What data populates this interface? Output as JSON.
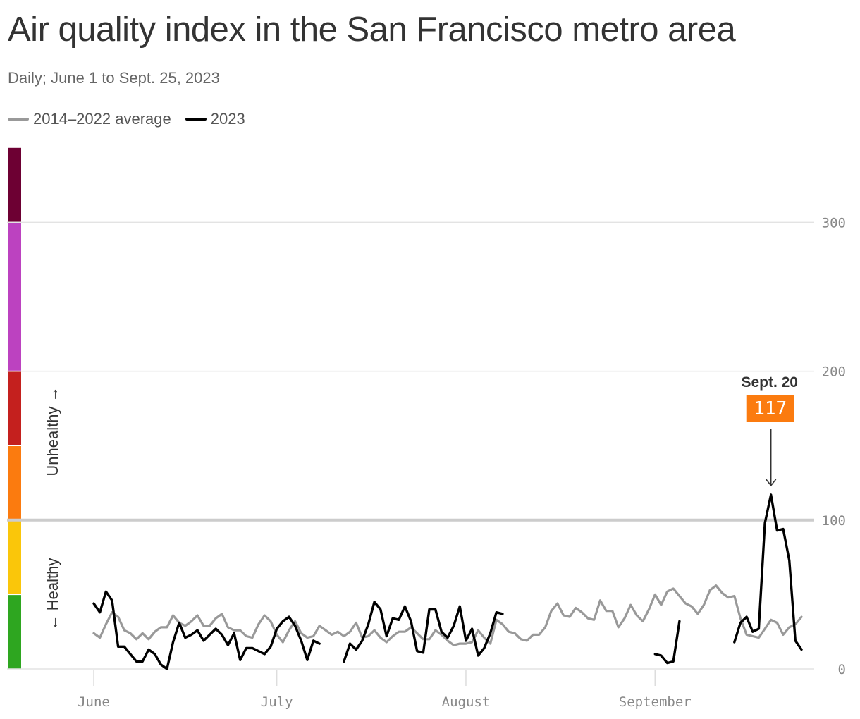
{
  "title": "Air quality index in the San Francisco metro area",
  "subtitle": "Daily; June 1 to Sept. 25, 2023",
  "chart_data": {
    "type": "line",
    "x_start": "2023-06-01",
    "x_end": "2023-09-25",
    "x_ticks": [
      {
        "label": "June",
        "date": "2023-06-01"
      },
      {
        "label": "July",
        "date": "2023-07-01"
      },
      {
        "label": "August",
        "date": "2023-08-01"
      },
      {
        "label": "September",
        "date": "2023-09-01"
      }
    ],
    "ylim": [
      0,
      350
    ],
    "y_ticks": [
      0,
      100,
      200,
      300
    ],
    "grid": true,
    "legend_position": "top-left",
    "series": [
      {
        "name": "2014–2022 average",
        "color": "#999999",
        "values": [
          24,
          21,
          30,
          38,
          35,
          26,
          24,
          20,
          24,
          20,
          25,
          28,
          28,
          36,
          31,
          29,
          32,
          36,
          29,
          29,
          34,
          37,
          28,
          26,
          26,
          22,
          21,
          30,
          36,
          32,
          23,
          18,
          26,
          32,
          24,
          21,
          22,
          29,
          26,
          23,
          25,
          22,
          25,
          31,
          21,
          22,
          26,
          21,
          18,
          22,
          25,
          25,
          28,
          24,
          20,
          20,
          26,
          23,
          19,
          16,
          17,
          17,
          18,
          26,
          21,
          17,
          33,
          30,
          25,
          24,
          20,
          19,
          23,
          23,
          28,
          39,
          44,
          36,
          35,
          41,
          38,
          34,
          33,
          46,
          39,
          39,
          28,
          34,
          43,
          36,
          32,
          40,
          50,
          43,
          52,
          54,
          49,
          44,
          42,
          37,
          43,
          53,
          56,
          51,
          48,
          49,
          34,
          23,
          22,
          21,
          27,
          33,
          31,
          23,
          28,
          30,
          35
        ],
        "start": "2023-06-01"
      },
      {
        "name": "2023",
        "color": "#000000",
        "segments": [
          {
            "start": "2023-06-01",
            "values": [
              44,
              38,
              52,
              46,
              15,
              15,
              10,
              5,
              5,
              13,
              10,
              3,
              0,
              18,
              31,
              21,
              23,
              26,
              19,
              23,
              27,
              23,
              16,
              24,
              6,
              14,
              14,
              12,
              10,
              15,
              27,
              32,
              35,
              29,
              19,
              6,
              19,
              17
            ]
          },
          {
            "start": "2023-07-12",
            "values": [
              5,
              17,
              13,
              19,
              30,
              45,
              40,
              22,
              34,
              33,
              42,
              32,
              12,
              11,
              40,
              40,
              25,
              21,
              29,
              42,
              19,
              27,
              9,
              14,
              24,
              38,
              37
            ]
          },
          {
            "start": "2023-09-01",
            "values": [
              10,
              9,
              4,
              5,
              32
            ]
          },
          {
            "start": "2023-09-14",
            "values": [
              18,
              31,
              35,
              25,
              27,
              98,
              117,
              93,
              94,
              73,
              19,
              13
            ]
          }
        ]
      }
    ],
    "aqi_bands": [
      {
        "from": 0,
        "to": 50,
        "color": "#2ea620"
      },
      {
        "from": 50,
        "to": 100,
        "color": "#fac60a"
      },
      {
        "from": 100,
        "to": 150,
        "color": "#fb7b0f"
      },
      {
        "from": 150,
        "to": 200,
        "color": "#c4201e"
      },
      {
        "from": 200,
        "to": 300,
        "color": "#bc42c0"
      },
      {
        "from": 300,
        "to": 350,
        "color": "#6d0033"
      }
    ],
    "threshold": 100,
    "side_labels": {
      "unhealthy": "Unhealthy →",
      "healthy": "← Healthy"
    },
    "annotation": {
      "date": "2023-09-20",
      "label": "Sept. 20",
      "value": "117",
      "color": "#fb7b0f"
    }
  }
}
